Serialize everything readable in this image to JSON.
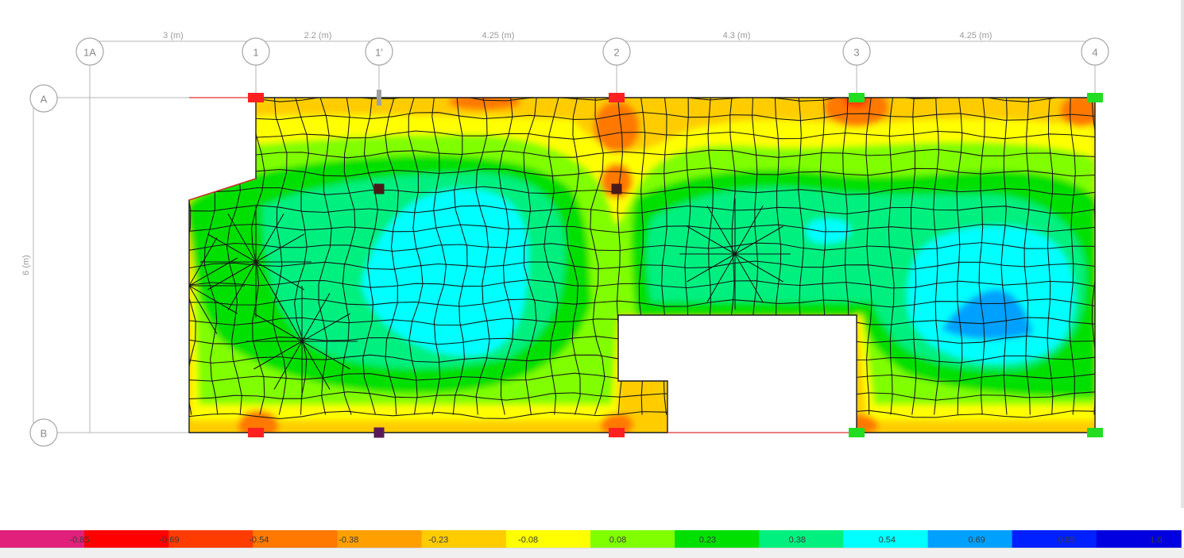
{
  "grid_x": [
    {
      "label": "1A",
      "pos": 0
    },
    {
      "label": "1",
      "pos": 3
    },
    {
      "label": "1'",
      "pos": 5.2
    },
    {
      "label": "2",
      "pos": 9.45
    },
    {
      "label": "3",
      "pos": 13.75
    },
    {
      "label": "4",
      "pos": 18
    }
  ],
  "grid_y": [
    {
      "label": "A"
    },
    {
      "label": "B"
    }
  ],
  "dimensions_x": [
    "3 (m)",
    "2.2 (m)",
    "4.25 (m)",
    "4.3 (m)",
    "4.25 (m)"
  ],
  "dimension_y": "6 (m)",
  "contour_legend": {
    "values": [
      "-0.85",
      "-0.69",
      "-0.54",
      "-0.38",
      "-0.23",
      "-0.08",
      "0.08",
      "0.23",
      "0.38",
      "0.54",
      "0.69",
      "0.85",
      "1.0"
    ],
    "colors": [
      "#e0207a",
      "#ff0000",
      "#ff3c00",
      "#ff7800",
      "#ffa000",
      "#ffcc00",
      "#ffff00",
      "#80ff00",
      "#00e000",
      "#00f080",
      "#00ffff",
      "#00a0ff",
      "#0020ff",
      "#0000e0"
    ]
  },
  "supports": [
    {
      "name": "support-1-A",
      "color": "#ff2020"
    },
    {
      "name": "support-1'-A",
      "color": "#a0a0a0"
    },
    {
      "name": "support-2-A",
      "color": "#ff2020"
    },
    {
      "name": "support-3-A",
      "color": "#22dd22"
    },
    {
      "name": "support-4-A",
      "color": "#22dd22"
    },
    {
      "name": "support-1'-mid",
      "color": "#4a1a1a"
    },
    {
      "name": "support-2-mid",
      "color": "#4a1a1a"
    },
    {
      "name": "support-1-B",
      "color": "#ff2020"
    },
    {
      "name": "support-1'-B",
      "color": "#5a1a5a"
    },
    {
      "name": "support-2-B",
      "color": "#ff2020"
    },
    {
      "name": "support-3-B",
      "color": "#22dd22"
    },
    {
      "name": "support-4-B",
      "color": "#22dd22"
    }
  ]
}
